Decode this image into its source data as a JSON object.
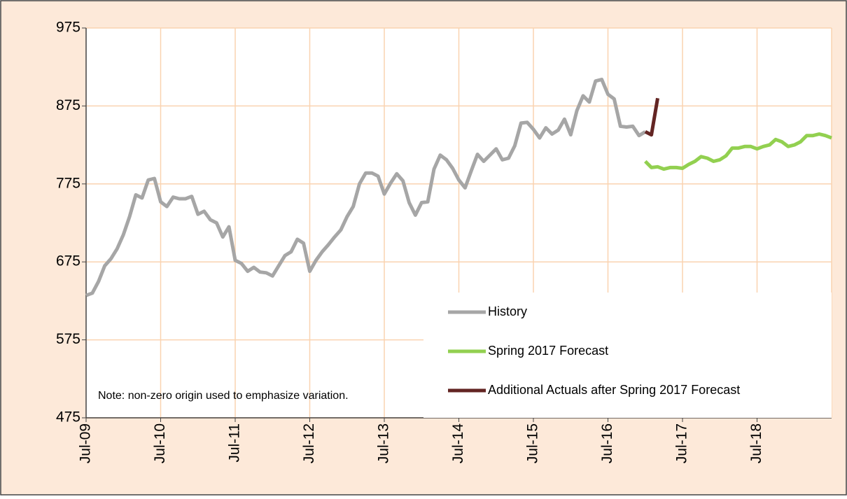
{
  "chart_data": {
    "type": "line",
    "annotation": "Note: non-zero origin used to emphasize variation.",
    "categories": [
      "Jul-09",
      null,
      null,
      null,
      null,
      null,
      null,
      null,
      null,
      null,
      null,
      null,
      "Jul-10",
      null,
      null,
      null,
      null,
      null,
      null,
      null,
      null,
      null,
      null,
      null,
      "Jul-11",
      null,
      null,
      null,
      null,
      null,
      null,
      null,
      null,
      null,
      null,
      null,
      "Jul-12",
      null,
      null,
      null,
      null,
      null,
      null,
      null,
      null,
      null,
      null,
      null,
      "Jul-13",
      null,
      null,
      null,
      null,
      null,
      null,
      null,
      null,
      null,
      null,
      null,
      "Jul-14",
      null,
      null,
      null,
      null,
      null,
      null,
      null,
      null,
      null,
      null,
      null,
      "Jul-15",
      null,
      null,
      null,
      null,
      null,
      null,
      null,
      null,
      null,
      null,
      null,
      "Jul-16",
      null,
      null,
      null,
      null,
      null,
      null,
      null,
      null,
      null,
      null,
      null,
      "Jul-17",
      null,
      null,
      null,
      null,
      null,
      null,
      null,
      null,
      null,
      null,
      null,
      "Jul-18",
      null,
      null,
      null,
      null,
      null,
      null,
      null,
      null,
      null,
      null,
      null,
      null
    ],
    "series": [
      {
        "name": "History",
        "color": "#a6a6a6",
        "values": [
          632,
          635,
          650,
          670,
          679,
          692,
          710,
          733,
          761,
          757,
          780,
          782,
          752,
          746,
          758,
          756,
          756,
          759,
          736,
          740,
          729,
          725,
          707,
          720,
          677,
          673,
          663,
          668,
          662,
          661,
          657,
          670,
          683,
          688,
          704,
          699,
          663,
          677,
          688,
          697,
          707,
          716,
          733,
          746,
          775,
          789,
          789,
          785,
          762,
          776,
          788,
          779,
          751,
          735,
          751,
          752,
          794,
          812,
          806,
          795,
          780,
          770,
          792,
          813,
          804,
          812,
          820,
          806,
          808,
          824,
          853,
          854,
          845,
          834,
          847,
          839,
          844,
          858,
          838,
          869,
          888,
          880,
          907,
          909,
          890,
          884,
          849,
          848,
          849,
          837,
          842,
          null,
          null,
          null,
          null,
          null,
          null,
          null,
          null,
          null,
          null,
          null,
          null,
          null,
          null,
          null,
          null,
          null,
          null,
          null,
          null,
          null,
          null,
          null,
          null,
          null,
          null,
          null,
          null,
          null,
          null
        ]
      },
      {
        "name": "Spring 2017 Forecast",
        "color": "#92d050",
        "values": [
          null,
          null,
          null,
          null,
          null,
          null,
          null,
          null,
          null,
          null,
          null,
          null,
          null,
          null,
          null,
          null,
          null,
          null,
          null,
          null,
          null,
          null,
          null,
          null,
          null,
          null,
          null,
          null,
          null,
          null,
          null,
          null,
          null,
          null,
          null,
          null,
          null,
          null,
          null,
          null,
          null,
          null,
          null,
          null,
          null,
          null,
          null,
          null,
          null,
          null,
          null,
          null,
          null,
          null,
          null,
          null,
          null,
          null,
          null,
          null,
          null,
          null,
          null,
          null,
          null,
          null,
          null,
          null,
          null,
          null,
          null,
          null,
          null,
          null,
          null,
          null,
          null,
          null,
          null,
          null,
          null,
          null,
          null,
          null,
          null,
          null,
          null,
          null,
          null,
          null,
          804,
          796,
          797,
          794,
          796,
          796,
          795,
          800,
          804,
          810,
          808,
          804,
          806,
          811,
          821,
          821,
          823,
          823,
          820,
          823,
          825,
          832,
          829,
          823,
          825,
          829,
          837,
          837,
          839,
          837,
          834
        ]
      },
      {
        "name": "Additional Actuals after Spring 2017 Forecast",
        "color": "#632523",
        "values": [
          null,
          null,
          null,
          null,
          null,
          null,
          null,
          null,
          null,
          null,
          null,
          null,
          null,
          null,
          null,
          null,
          null,
          null,
          null,
          null,
          null,
          null,
          null,
          null,
          null,
          null,
          null,
          null,
          null,
          null,
          null,
          null,
          null,
          null,
          null,
          null,
          null,
          null,
          null,
          null,
          null,
          null,
          null,
          null,
          null,
          null,
          null,
          null,
          null,
          null,
          null,
          null,
          null,
          null,
          null,
          null,
          null,
          null,
          null,
          null,
          null,
          null,
          null,
          null,
          null,
          null,
          null,
          null,
          null,
          null,
          null,
          null,
          null,
          null,
          null,
          null,
          null,
          null,
          null,
          null,
          null,
          null,
          null,
          null,
          null,
          null,
          null,
          null,
          null,
          null,
          842,
          838,
          885,
          null,
          null,
          null,
          null,
          null,
          null,
          null,
          null,
          null,
          null,
          null,
          null,
          null,
          null,
          null,
          null,
          null,
          null,
          null,
          null,
          null,
          null,
          null,
          null,
          null,
          null,
          null,
          null
        ]
      }
    ],
    "ylim": [
      475,
      975
    ],
    "yticks": [
      475,
      575,
      675,
      775,
      875,
      975
    ],
    "grid": true,
    "legend": "lower right"
  }
}
